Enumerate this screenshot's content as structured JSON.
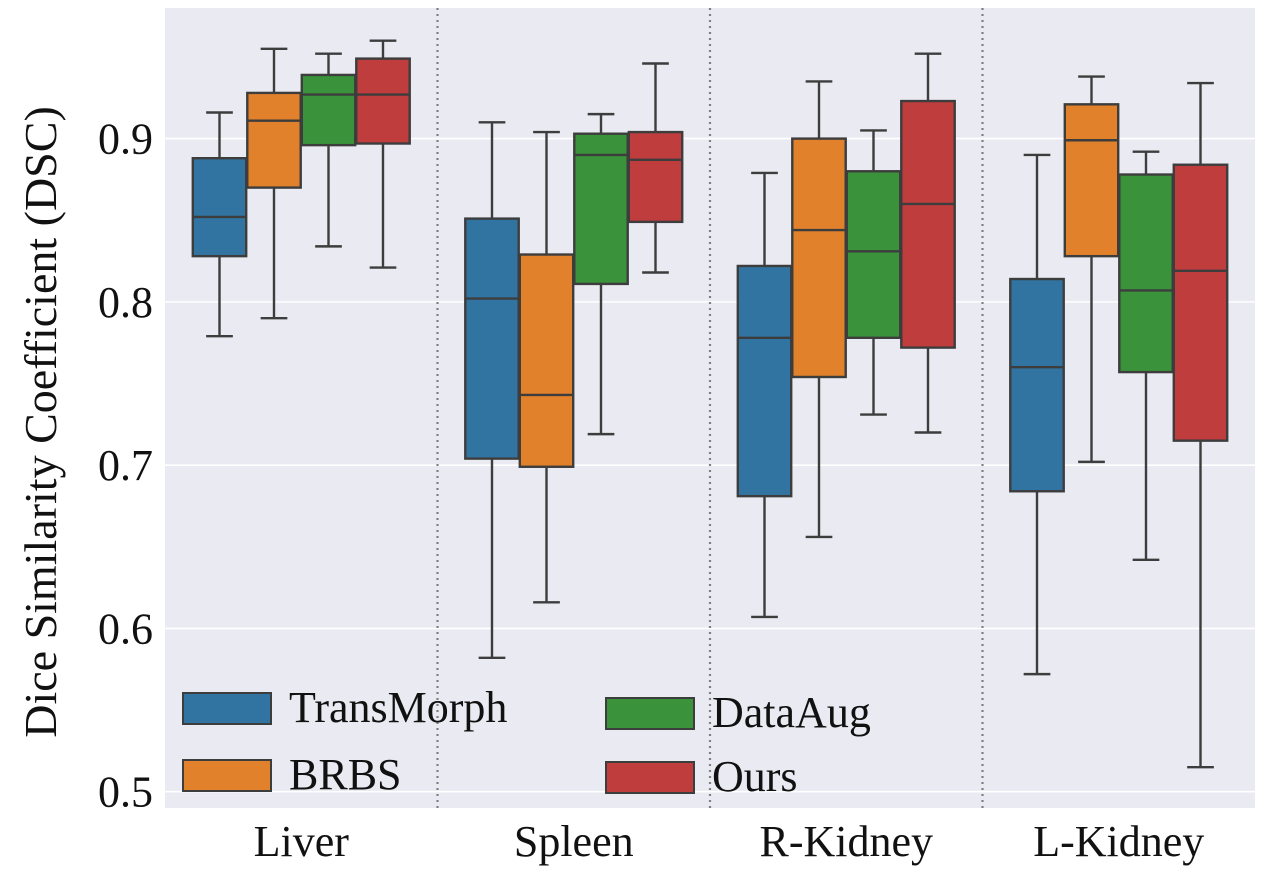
{
  "chart_data": {
    "type": "box",
    "title": "",
    "xlabel": "",
    "ylabel": "Dice Similarity Coefficient (DSC)",
    "ylim": [
      0.49,
      0.98
    ],
    "yticks": [
      "0.5",
      "0.6",
      "0.7",
      "0.8",
      "0.9"
    ],
    "categories": [
      "Liver",
      "Spleen",
      "R-Kidney",
      "L-Kidney"
    ],
    "legend_position": "bottom-left",
    "series": [
      {
        "name": "TransMorph",
        "color": "#3274a1",
        "boxes": [
          {
            "whisker_low": 0.779,
            "q1": 0.828,
            "median": 0.852,
            "q3": 0.888,
            "whisker_high": 0.916
          },
          {
            "whisker_low": 0.582,
            "q1": 0.704,
            "median": 0.802,
            "q3": 0.851,
            "whisker_high": 0.91
          },
          {
            "whisker_low": 0.607,
            "q1": 0.681,
            "median": 0.778,
            "q3": 0.822,
            "whisker_high": 0.879
          },
          {
            "whisker_low": 0.572,
            "q1": 0.684,
            "median": 0.76,
            "q3": 0.814,
            "whisker_high": 0.89
          }
        ]
      },
      {
        "name": "BRBS",
        "color": "#e1812c",
        "boxes": [
          {
            "whisker_low": 0.79,
            "q1": 0.87,
            "median": 0.911,
            "q3": 0.928,
            "whisker_high": 0.955
          },
          {
            "whisker_low": 0.616,
            "q1": 0.699,
            "median": 0.743,
            "q3": 0.829,
            "whisker_high": 0.904
          },
          {
            "whisker_low": 0.656,
            "q1": 0.754,
            "median": 0.844,
            "q3": 0.9,
            "whisker_high": 0.935
          },
          {
            "whisker_low": 0.702,
            "q1": 0.828,
            "median": 0.899,
            "q3": 0.921,
            "whisker_high": 0.938
          }
        ]
      },
      {
        "name": "DataAug",
        "color": "#3a923a",
        "boxes": [
          {
            "whisker_low": 0.834,
            "q1": 0.896,
            "median": 0.927,
            "q3": 0.939,
            "whisker_high": 0.952
          },
          {
            "whisker_low": 0.719,
            "q1": 0.811,
            "median": 0.89,
            "q3": 0.903,
            "whisker_high": 0.915
          },
          {
            "whisker_low": 0.731,
            "q1": 0.778,
            "median": 0.831,
            "q3": 0.88,
            "whisker_high": 0.905
          },
          {
            "whisker_low": 0.642,
            "q1": 0.757,
            "median": 0.807,
            "q3": 0.878,
            "whisker_high": 0.892
          }
        ]
      },
      {
        "name": "Ours",
        "color": "#c03d3e",
        "boxes": [
          {
            "whisker_low": 0.821,
            "q1": 0.897,
            "median": 0.927,
            "q3": 0.949,
            "whisker_high": 0.96
          },
          {
            "whisker_low": 0.818,
            "q1": 0.849,
            "median": 0.887,
            "q3": 0.904,
            "whisker_high": 0.946
          },
          {
            "whisker_low": 0.72,
            "q1": 0.772,
            "median": 0.86,
            "q3": 0.923,
            "whisker_high": 0.952
          },
          {
            "whisker_low": 0.515,
            "q1": 0.715,
            "median": 0.819,
            "q3": 0.884,
            "whisker_high": 0.934
          }
        ]
      }
    ]
  }
}
